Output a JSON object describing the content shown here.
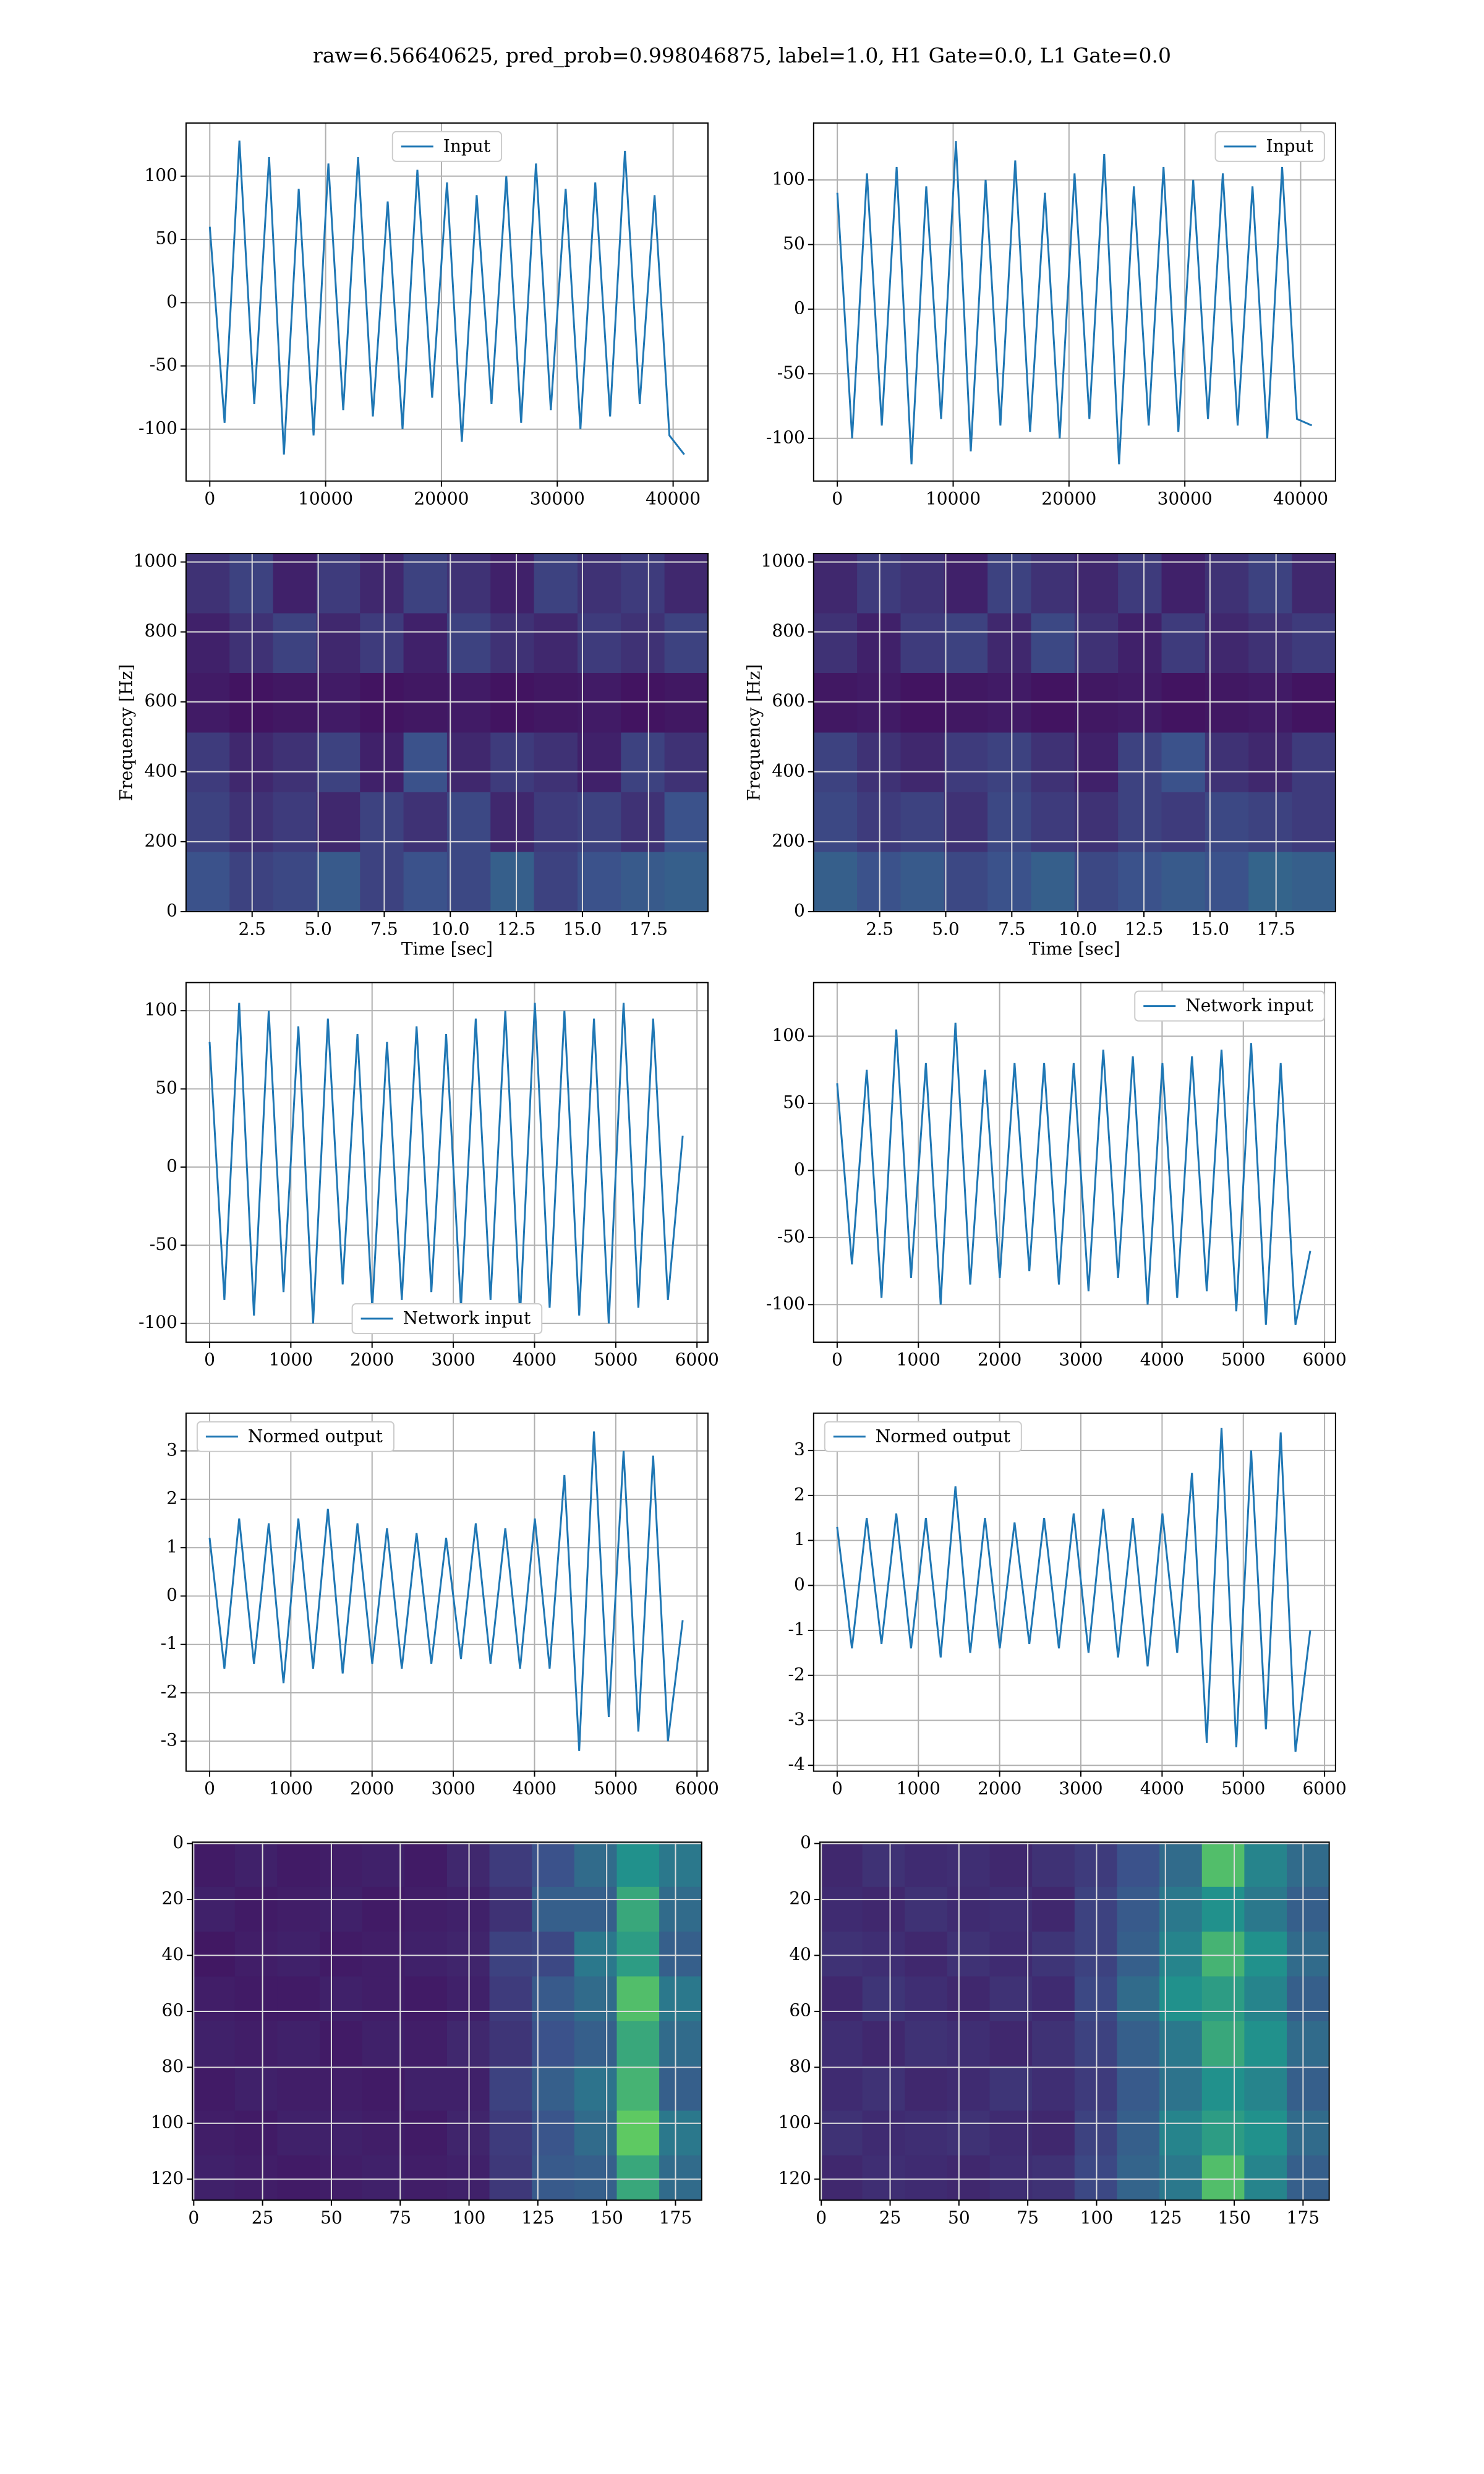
{
  "title": "raw=6.56640625, pred_prob=0.998046875, label=1.0, H1 Gate=0.0, L1 Gate=0.0",
  "chart_data": [
    {
      "type": "line",
      "legend": "upper center",
      "grid": true,
      "grid_color": "#b0b0b0",
      "x": [
        0,
        1280,
        2560,
        3840,
        5120,
        6400,
        7680,
        8960,
        10240,
        11520,
        12800,
        14080,
        15360,
        16640,
        17920,
        19200,
        20480,
        21760,
        23040,
        24320,
        25600,
        26880,
        28160,
        29440,
        30720,
        32000,
        33280,
        34560,
        35840,
        37120,
        38400,
        39680,
        40960
      ],
      "series": [
        {
          "name": "Input",
          "color": "#1f77b4",
          "values": [
            60,
            -95,
            128,
            -80,
            115,
            -120,
            90,
            -105,
            110,
            -85,
            115,
            -90,
            80,
            -100,
            105,
            -75,
            95,
            -110,
            85,
            -80,
            100,
            -95,
            110,
            -85,
            90,
            -100,
            95,
            -90,
            120,
            -80,
            85,
            -105,
            -120
          ]
        }
      ],
      "xlim": [
        -2048,
        43008
      ],
      "xticks": [
        0,
        10000,
        20000,
        30000,
        40000
      ],
      "ylim": [
        -141,
        142
      ],
      "yticks": [
        -100,
        -50,
        0,
        50,
        100
      ]
    },
    {
      "type": "line",
      "legend": "upper right",
      "grid": true,
      "grid_color": "#b0b0b0",
      "x": [
        0,
        1280,
        2560,
        3840,
        5120,
        6400,
        7680,
        8960,
        10240,
        11520,
        12800,
        14080,
        15360,
        16640,
        17920,
        19200,
        20480,
        21760,
        23040,
        24320,
        25600,
        26880,
        28160,
        29440,
        30720,
        32000,
        33280,
        34560,
        35840,
        37120,
        38400,
        39680,
        40960
      ],
      "series": [
        {
          "name": "Input",
          "color": "#1f77b4",
          "values": [
            90,
            -100,
            105,
            -90,
            110,
            -120,
            95,
            -85,
            130,
            -110,
            100,
            -90,
            115,
            -95,
            90,
            -100,
            105,
            -85,
            120,
            -120,
            95,
            -90,
            110,
            -95,
            100,
            -85,
            105,
            -90,
            95,
            -100,
            110,
            -85,
            -90
          ]
        }
      ],
      "xlim": [
        -2048,
        43008
      ],
      "xticks": [
        0,
        10000,
        20000,
        30000,
        40000
      ],
      "ylim": [
        -133,
        144
      ],
      "yticks": [
        -100,
        -50,
        0,
        50,
        100
      ]
    },
    {
      "type": "heatmap",
      "colormap": "viridis",
      "grid": true,
      "grid_color": "#dddddd",
      "xlabel": "Time [sec]",
      "ylabel": "Frequency [Hz]",
      "xlim": [
        0,
        19.75
      ],
      "xticks": [
        2.5,
        {
          "value": 5,
          "label": "5.0"
        },
        7.5,
        {
          "value": 10,
          "label": "10.0"
        },
        12.5,
        {
          "value": 15,
          "label": "15.0"
        },
        17.5
      ],
      "ylim": [
        0,
        1024
      ],
      "yticks": [
        0,
        200,
        400,
        600,
        800,
        1000
      ],
      "z": [
        [
          0.15,
          0.2,
          0.1,
          0.18,
          0.12,
          0.2,
          0.15,
          0.1,
          0.2,
          0.15,
          0.18,
          0.12
        ],
        [
          0.1,
          0.15,
          0.2,
          0.12,
          0.18,
          0.1,
          0.2,
          0.15,
          0.12,
          0.18,
          0.15,
          0.2
        ],
        [
          0.08,
          0.06,
          0.07,
          0.08,
          0.06,
          0.07,
          0.08,
          0.06,
          0.07,
          0.08,
          0.06,
          0.07
        ],
        [
          0.18,
          0.12,
          0.15,
          0.2,
          0.1,
          0.25,
          0.12,
          0.18,
          0.15,
          0.1,
          0.2,
          0.15
        ],
        [
          0.2,
          0.15,
          0.18,
          0.12,
          0.2,
          0.15,
          0.22,
          0.12,
          0.18,
          0.2,
          0.15,
          0.25
        ],
        [
          0.25,
          0.2,
          0.22,
          0.28,
          0.2,
          0.25,
          0.22,
          0.3,
          0.2,
          0.25,
          0.28,
          0.3
        ]
      ]
    },
    {
      "type": "heatmap",
      "colormap": "viridis",
      "grid": true,
      "grid_color": "#dddddd",
      "xlabel": "Time [sec]",
      "ylabel": "Frequency [Hz]",
      "xlim": [
        0,
        19.75
      ],
      "xticks": [
        2.5,
        {
          "value": 5,
          "label": "5.0"
        },
        7.5,
        {
          "value": 10,
          "label": "10.0"
        },
        12.5,
        {
          "value": 15,
          "label": "15.0"
        },
        17.5
      ],
      "ylim": [
        0,
        1024
      ],
      "yticks": [
        0,
        200,
        400,
        600,
        800,
        1000
      ],
      "z": [
        [
          0.12,
          0.18,
          0.15,
          0.1,
          0.2,
          0.15,
          0.12,
          0.18,
          0.1,
          0.15,
          0.2,
          0.12
        ],
        [
          0.15,
          0.1,
          0.18,
          0.2,
          0.12,
          0.22,
          0.15,
          0.1,
          0.18,
          0.12,
          0.15,
          0.18
        ],
        [
          0.07,
          0.08,
          0.06,
          0.07,
          0.08,
          0.06,
          0.07,
          0.08,
          0.06,
          0.07,
          0.08,
          0.06
        ],
        [
          0.2,
          0.15,
          0.12,
          0.18,
          0.2,
          0.15,
          0.1,
          0.2,
          0.25,
          0.15,
          0.12,
          0.18
        ],
        [
          0.22,
          0.18,
          0.2,
          0.15,
          0.22,
          0.18,
          0.15,
          0.2,
          0.18,
          0.22,
          0.2,
          0.18
        ],
        [
          0.3,
          0.25,
          0.28,
          0.22,
          0.25,
          0.3,
          0.22,
          0.25,
          0.28,
          0.25,
          0.32,
          0.3
        ]
      ]
    },
    {
      "type": "line",
      "legend": "lower center",
      "grid": true,
      "grid_color": "#b0b0b0",
      "x": [
        0,
        182,
        364,
        546,
        728,
        910,
        1092,
        1274,
        1456,
        1638,
        1820,
        2002,
        2184,
        2366,
        2548,
        2730,
        2912,
        3094,
        3276,
        3458,
        3640,
        3822,
        4004,
        4186,
        4368,
        4550,
        4732,
        4914,
        5096,
        5278,
        5460,
        5642,
        5824
      ],
      "series": [
        {
          "name": "Network input",
          "color": "#1f77b4",
          "values": [
            80,
            -85,
            105,
            -95,
            100,
            -80,
            90,
            -100,
            95,
            -75,
            85,
            -90,
            80,
            -85,
            90,
            -80,
            85,
            -90,
            95,
            -85,
            100,
            -95,
            105,
            -90,
            100,
            -95,
            95,
            -100,
            105,
            -90,
            95,
            -85,
            20
          ]
        }
      ],
      "xlim": [
        -290,
        6135
      ],
      "xticks": [
        0,
        1000,
        2000,
        3000,
        4000,
        5000,
        6000
      ],
      "ylim": [
        -112,
        118
      ],
      "yticks": [
        -100,
        -50,
        0,
        50,
        100
      ]
    },
    {
      "type": "line",
      "legend": "upper right",
      "grid": true,
      "grid_color": "#b0b0b0",
      "x": [
        0,
        182,
        364,
        546,
        728,
        910,
        1092,
        1274,
        1456,
        1638,
        1820,
        2002,
        2184,
        2366,
        2548,
        2730,
        2912,
        3094,
        3276,
        3458,
        3640,
        3822,
        4004,
        4186,
        4368,
        4550,
        4732,
        4914,
        5096,
        5278,
        5460,
        5642,
        5824
      ],
      "series": [
        {
          "name": "Network input",
          "color": "#1f77b4",
          "values": [
            65,
            -70,
            75,
            -95,
            105,
            -80,
            80,
            -100,
            110,
            -85,
            75,
            -80,
            80,
            -75,
            80,
            -85,
            80,
            -90,
            90,
            -80,
            85,
            -100,
            80,
            -95,
            85,
            -90,
            90,
            -105,
            95,
            -115,
            80,
            -115,
            -60
          ]
        }
      ],
      "xlim": [
        -290,
        6135
      ],
      "xticks": [
        0,
        1000,
        2000,
        3000,
        4000,
        5000,
        6000
      ],
      "ylim": [
        -128,
        140
      ],
      "yticks": [
        -100,
        -50,
        0,
        50,
        100
      ]
    },
    {
      "type": "line",
      "legend": "upper left",
      "grid": true,
      "grid_color": "#b0b0b0",
      "x": [
        0,
        182,
        364,
        546,
        728,
        910,
        1092,
        1274,
        1456,
        1638,
        1820,
        2002,
        2184,
        2366,
        2548,
        2730,
        2912,
        3094,
        3276,
        3458,
        3640,
        3822,
        4004,
        4186,
        4368,
        4550,
        4732,
        4914,
        5096,
        5278,
        5460,
        5642,
        5824
      ],
      "series": [
        {
          "name": "Normed output",
          "color": "#1f77b4",
          "values": [
            1.2,
            -1.5,
            1.6,
            -1.4,
            1.5,
            -1.8,
            1.6,
            -1.5,
            1.8,
            -1.6,
            1.5,
            -1.4,
            1.4,
            -1.5,
            1.3,
            -1.4,
            1.2,
            -1.3,
            1.5,
            -1.4,
            1.4,
            -1.5,
            1.6,
            -1.5,
            2.5,
            -3.2,
            3.4,
            -2.5,
            3.0,
            -2.8,
            2.9,
            -3.0,
            -0.5
          ]
        }
      ],
      "xlim": [
        -290,
        6135
      ],
      "xticks": [
        0,
        1000,
        2000,
        3000,
        4000,
        5000,
        6000
      ],
      "ylim": [
        -3.62,
        3.78
      ],
      "yticks": [
        -3,
        -2,
        -1,
        0,
        1,
        2,
        3
      ]
    },
    {
      "type": "line",
      "legend": "upper left",
      "grid": true,
      "grid_color": "#b0b0b0",
      "x": [
        0,
        182,
        364,
        546,
        728,
        910,
        1092,
        1274,
        1456,
        1638,
        1820,
        2002,
        2184,
        2366,
        2548,
        2730,
        2912,
        3094,
        3276,
        3458,
        3640,
        3822,
        4004,
        4186,
        4368,
        4550,
        4732,
        4914,
        5096,
        5278,
        5460,
        5642,
        5824
      ],
      "series": [
        {
          "name": "Normed output",
          "color": "#1f77b4",
          "values": [
            1.3,
            -1.4,
            1.5,
            -1.3,
            1.6,
            -1.4,
            1.5,
            -1.6,
            2.2,
            -1.5,
            1.5,
            -1.4,
            1.4,
            -1.3,
            1.5,
            -1.4,
            1.6,
            -1.5,
            1.7,
            -1.6,
            1.5,
            -1.8,
            1.6,
            -1.5,
            2.5,
            -3.5,
            3.5,
            -3.6,
            3.0,
            -3.2,
            3.4,
            -3.7,
            -1
          ]
        }
      ],
      "xlim": [
        -290,
        6135
      ],
      "xticks": [
        0,
        1000,
        2000,
        3000,
        4000,
        5000,
        6000
      ],
      "ylim": [
        -4.13,
        3.83
      ],
      "yticks": [
        -4,
        -3,
        -2,
        -1,
        0,
        1,
        2,
        3
      ]
    },
    {
      "type": "heatmap",
      "colormap": "viridis",
      "grid": true,
      "grid_color": "#dddddd",
      "xlim": [
        -0.5,
        184.5
      ],
      "xticks": [
        0,
        25,
        50,
        75,
        100,
        125,
        150,
        175
      ],
      "ylim": [
        127.5,
        -0.5
      ],
      "yticks": [
        0,
        20,
        40,
        60,
        80,
        100,
        120
      ],
      "z": [
        [
          0.08,
          0.1,
          0.08,
          0.09,
          0.1,
          0.08,
          0.12,
          0.18,
          0.25,
          0.35,
          0.5,
          0.4
        ],
        [
          0.1,
          0.08,
          0.09,
          0.1,
          0.08,
          0.09,
          0.1,
          0.15,
          0.3,
          0.3,
          0.6,
          0.35
        ],
        [
          0.07,
          0.09,
          0.1,
          0.08,
          0.09,
          0.1,
          0.11,
          0.2,
          0.22,
          0.4,
          0.55,
          0.3
        ],
        [
          0.09,
          0.08,
          0.08,
          0.1,
          0.09,
          0.08,
          0.1,
          0.18,
          0.28,
          0.35,
          0.7,
          0.4
        ],
        [
          0.1,
          0.09,
          0.1,
          0.08,
          0.1,
          0.09,
          0.12,
          0.16,
          0.25,
          0.3,
          0.6,
          0.35
        ],
        [
          0.08,
          0.1,
          0.09,
          0.09,
          0.08,
          0.1,
          0.1,
          0.2,
          0.3,
          0.38,
          0.65,
          0.3
        ],
        [
          0.09,
          0.08,
          0.1,
          0.1,
          0.09,
          0.08,
          0.11,
          0.18,
          0.26,
          0.35,
          0.75,
          0.4
        ],
        [
          0.1,
          0.09,
          0.08,
          0.09,
          0.1,
          0.09,
          0.1,
          0.17,
          0.28,
          0.3,
          0.6,
          0.35
        ]
      ]
    },
    {
      "type": "heatmap",
      "colormap": "viridis",
      "grid": true,
      "grid_color": "#dddddd",
      "xlim": [
        -0.5,
        184.5
      ],
      "xticks": [
        0,
        25,
        50,
        75,
        100,
        125,
        150,
        175
      ],
      "ylim": [
        127.5,
        -0.5
      ],
      "yticks": [
        0,
        20,
        40,
        60,
        80,
        100,
        120
      ],
      "z": [
        [
          0.12,
          0.15,
          0.13,
          0.14,
          0.12,
          0.15,
          0.18,
          0.25,
          0.35,
          0.7,
          0.45,
          0.35
        ],
        [
          0.13,
          0.12,
          0.15,
          0.13,
          0.14,
          0.12,
          0.2,
          0.28,
          0.4,
          0.5,
          0.4,
          0.3
        ],
        [
          0.15,
          0.14,
          0.12,
          0.15,
          0.13,
          0.16,
          0.2,
          0.3,
          0.45,
          0.65,
          0.5,
          0.35
        ],
        [
          0.12,
          0.16,
          0.14,
          0.12,
          0.15,
          0.13,
          0.22,
          0.35,
          0.5,
          0.55,
          0.45,
          0.3
        ],
        [
          0.14,
          0.12,
          0.15,
          0.14,
          0.12,
          0.15,
          0.2,
          0.3,
          0.4,
          0.6,
          0.5,
          0.35
        ],
        [
          0.13,
          0.15,
          0.12,
          0.13,
          0.16,
          0.14,
          0.18,
          0.28,
          0.38,
          0.5,
          0.45,
          0.3
        ],
        [
          0.15,
          0.13,
          0.14,
          0.15,
          0.13,
          0.12,
          0.2,
          0.3,
          0.45,
          0.55,
          0.5,
          0.35
        ],
        [
          0.12,
          0.14,
          0.13,
          0.12,
          0.14,
          0.15,
          0.22,
          0.32,
          0.4,
          0.7,
          0.45,
          0.3
        ]
      ]
    }
  ]
}
